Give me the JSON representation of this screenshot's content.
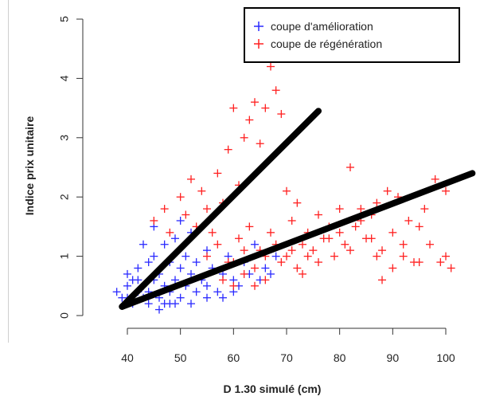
{
  "chart_data": {
    "type": "scatter",
    "xlabel": "D 1.30 simulé (cm)",
    "ylabel": "Indice prix unitaire",
    "xlim": [
      35,
      105
    ],
    "ylim": [
      -0.1,
      5.1
    ],
    "x_ticks": [
      40,
      50,
      60,
      70,
      80,
      90,
      100
    ],
    "y_ticks": [
      0,
      1,
      2,
      3,
      4,
      5
    ],
    "legend_position": "top-right",
    "series": [
      {
        "name": "coupe d'amélioration",
        "color": "#2a2aff",
        "marker": "+",
        "points": [
          [
            38,
            0.4
          ],
          [
            39,
            0.3
          ],
          [
            40,
            0.5
          ],
          [
            40,
            0.3
          ],
          [
            41,
            0.6
          ],
          [
            41,
            0.2
          ],
          [
            42,
            0.4
          ],
          [
            42,
            0.8
          ],
          [
            43,
            0.5
          ],
          [
            43,
            0.3
          ],
          [
            44,
            0.9
          ],
          [
            44,
            0.4
          ],
          [
            45,
            0.6
          ],
          [
            45,
            1.0
          ],
          [
            46,
            0.3
          ],
          [
            46,
            0.7
          ],
          [
            47,
            1.2
          ],
          [
            47,
            0.5
          ],
          [
            48,
            0.4
          ],
          [
            48,
            0.9
          ],
          [
            49,
            1.3
          ],
          [
            49,
            0.6
          ],
          [
            50,
            0.8
          ],
          [
            50,
            0.3
          ],
          [
            51,
            1.0
          ],
          [
            51,
            0.5
          ],
          [
            52,
            0.7
          ],
          [
            52,
            1.4
          ],
          [
            53,
            0.4
          ],
          [
            53,
            0.9
          ],
          [
            54,
            0.6
          ],
          [
            55,
            1.1
          ],
          [
            55,
            0.5
          ],
          [
            56,
            0.8
          ],
          [
            57,
            0.4
          ],
          [
            58,
            0.7
          ],
          [
            59,
            1.0
          ],
          [
            60,
            0.6
          ],
          [
            61,
            0.5
          ],
          [
            62,
            0.9
          ],
          [
            63,
            0.7
          ],
          [
            64,
            1.2
          ],
          [
            65,
            0.6
          ],
          [
            66,
            0.8
          ],
          [
            67,
            0.7
          ],
          [
            68,
            1.0
          ],
          [
            43,
            1.2
          ],
          [
            45,
            1.5
          ],
          [
            47,
            0.2
          ],
          [
            50,
            1.6
          ],
          [
            52,
            0.2
          ],
          [
            46,
            0.1
          ],
          [
            44,
            0.2
          ],
          [
            48,
            0.2
          ],
          [
            55,
            0.3
          ],
          [
            58,
            0.3
          ],
          [
            60,
            0.4
          ],
          [
            49,
            0.2
          ],
          [
            42,
            0.6
          ],
          [
            40,
            0.7
          ]
        ]
      },
      {
        "name": "coupe de régénération",
        "color": "#ff2020",
        "marker": "+",
        "points": [
          [
            45,
            1.6
          ],
          [
            47,
            1.8
          ],
          [
            48,
            1.4
          ],
          [
            50,
            2.0
          ],
          [
            51,
            1.7
          ],
          [
            52,
            2.3
          ],
          [
            53,
            1.5
          ],
          [
            54,
            2.1
          ],
          [
            55,
            1.8
          ],
          [
            56,
            1.4
          ],
          [
            57,
            2.4
          ],
          [
            58,
            1.9
          ],
          [
            59,
            2.8
          ],
          [
            60,
            3.5
          ],
          [
            61,
            2.2
          ],
          [
            62,
            3.0
          ],
          [
            63,
            3.3
          ],
          [
            64,
            3.6
          ],
          [
            65,
            2.9
          ],
          [
            66,
            3.5
          ],
          [
            67,
            4.2
          ],
          [
            68,
            3.8
          ],
          [
            69,
            3.4
          ],
          [
            70,
            2.1
          ],
          [
            71,
            1.6
          ],
          [
            72,
            1.9
          ],
          [
            73,
            1.2
          ],
          [
            74,
            1.4
          ],
          [
            75,
            1.1
          ],
          [
            76,
            1.7
          ],
          [
            77,
            1.3
          ],
          [
            78,
            1.5
          ],
          [
            79,
            1.0
          ],
          [
            80,
            1.8
          ],
          [
            81,
            1.2
          ],
          [
            82,
            2.5
          ],
          [
            83,
            1.5
          ],
          [
            84,
            1.6
          ],
          [
            85,
            1.3
          ],
          [
            86,
            1.7
          ],
          [
            87,
            1.9
          ],
          [
            88,
            1.1
          ],
          [
            89,
            2.1
          ],
          [
            90,
            1.4
          ],
          [
            91,
            2.0
          ],
          [
            92,
            1.2
          ],
          [
            93,
            1.6
          ],
          [
            94,
            0.9
          ],
          [
            95,
            1.5
          ],
          [
            96,
            1.8
          ],
          [
            97,
            1.2
          ],
          [
            98,
            2.3
          ],
          [
            99,
            0.9
          ],
          [
            100,
            1.0
          ],
          [
            101,
            0.8
          ],
          [
            100,
            2.1
          ],
          [
            88,
            0.6
          ],
          [
            90,
            0.8
          ],
          [
            92,
            1.0
          ],
          [
            95,
            0.9
          ],
          [
            60,
            0.9
          ],
          [
            62,
            1.1
          ],
          [
            64,
            0.8
          ],
          [
            66,
            1.0
          ],
          [
            68,
            1.2
          ],
          [
            70,
            1.0
          ],
          [
            72,
            0.8
          ],
          [
            74,
            1.0
          ],
          [
            76,
            0.9
          ],
          [
            78,
            1.3
          ],
          [
            55,
            1.0
          ],
          [
            57,
            1.2
          ],
          [
            59,
            0.9
          ],
          [
            61,
            1.3
          ],
          [
            63,
            1.5
          ],
          [
            65,
            1.1
          ],
          [
            67,
            1.4
          ],
          [
            69,
            0.9
          ],
          [
            71,
            1.1
          ],
          [
            73,
            0.7
          ],
          [
            58,
            0.6
          ],
          [
            60,
            0.5
          ],
          [
            62,
            0.7
          ],
          [
            64,
            0.5
          ],
          [
            66,
            0.6
          ],
          [
            80,
            1.4
          ],
          [
            82,
            1.1
          ],
          [
            84,
            1.8
          ],
          [
            86,
            1.3
          ],
          [
            87,
            1.0
          ]
        ]
      }
    ],
    "lines": [
      {
        "x": [
          39,
          76
        ],
        "y": [
          0.15,
          3.45
        ],
        "color": "#000000",
        "width": 8
      },
      {
        "x": [
          39,
          105
        ],
        "y": [
          0.15,
          2.4
        ],
        "color": "#000000",
        "width": 8
      }
    ]
  }
}
